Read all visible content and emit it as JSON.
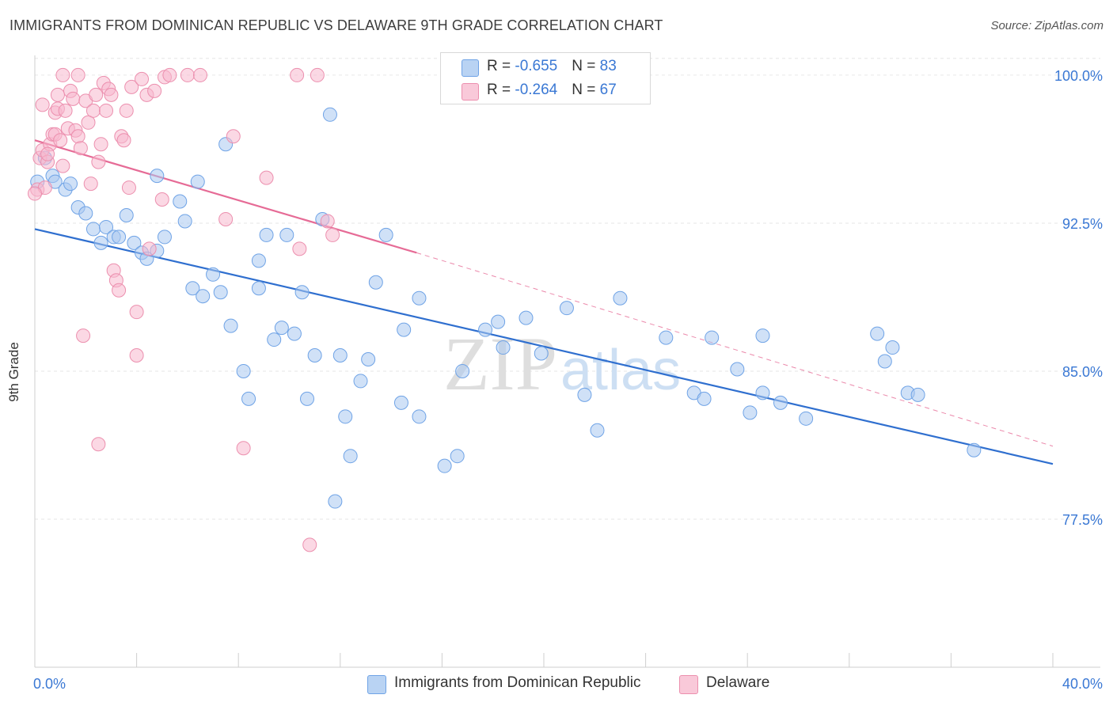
{
  "title": "IMMIGRANTS FROM DOMINICAN REPUBLIC VS DELAWARE 9TH GRADE CORRELATION CHART",
  "source": "Source: ZipAtlas.com",
  "watermark": {
    "zip": "ZIP",
    "atlas": "atlas"
  },
  "legend_top": [
    {
      "r_label": "R = ",
      "r_value": "-0.655",
      "n_label": "N = ",
      "n_value": "83",
      "color": "#a9c8f0"
    },
    {
      "r_label": "R = ",
      "r_value": "-0.264",
      "n_label": "N = ",
      "n_value": "67",
      "color": "#f7b8cd"
    }
  ],
  "legend_bottom": [
    {
      "label": "Immigrants from Dominican Republic",
      "color": "#a9c8f0"
    },
    {
      "label": "Delaware",
      "color": "#f7b8cd"
    }
  ],
  "chart_data": {
    "type": "scatter",
    "title": "IMMIGRANTS FROM DOMINICAN REPUBLIC VS DELAWARE 9TH GRADE CORRELATION CHART",
    "xlabel": "",
    "ylabel": "9th Grade",
    "xlim": [
      0,
      40
    ],
    "ylim": [
      70.0,
      101.0
    ],
    "x_tick_labels": [
      {
        "value": 0,
        "label": "0.0%"
      },
      {
        "value": 40,
        "label": "40.0%"
      }
    ],
    "y_tick_labels": [
      {
        "value": 100.0,
        "label": "100.0%"
      },
      {
        "value": 92.5,
        "label": "92.5%"
      },
      {
        "value": 85.0,
        "label": "85.0%"
      },
      {
        "value": 77.5,
        "label": "77.5%"
      }
    ],
    "grid": true,
    "legend_position": "top-center",
    "series": [
      {
        "name": "Immigrants from Dominican Republic",
        "color": "#6fa3e6",
        "fill": "#a9c8f0",
        "trend": {
          "x": [
            0,
            40
          ],
          "y": [
            92.2,
            80.3
          ],
          "style": "solid",
          "color": "#2f6fcf"
        },
        "points": [
          [
            0.1,
            94.6
          ],
          [
            0.4,
            95.8
          ],
          [
            0.7,
            94.9
          ],
          [
            0.8,
            94.6
          ],
          [
            1.2,
            94.2
          ],
          [
            1.4,
            94.5
          ],
          [
            1.7,
            93.3
          ],
          [
            2.0,
            93.0
          ],
          [
            2.3,
            92.2
          ],
          [
            2.6,
            91.5
          ],
          [
            2.8,
            92.3
          ],
          [
            3.1,
            91.8
          ],
          [
            3.3,
            91.8
          ],
          [
            3.6,
            92.9
          ],
          [
            3.9,
            91.5
          ],
          [
            4.2,
            91.0
          ],
          [
            4.4,
            90.7
          ],
          [
            4.8,
            91.1
          ],
          [
            5.1,
            91.8
          ],
          [
            4.8,
            94.9
          ],
          [
            5.7,
            93.6
          ],
          [
            5.9,
            92.6
          ],
          [
            6.4,
            94.6
          ],
          [
            7.5,
            96.5
          ],
          [
            6.2,
            89.2
          ],
          [
            6.6,
            88.8
          ],
          [
            7.0,
            89.9
          ],
          [
            7.3,
            89.0
          ],
          [
            7.7,
            87.3
          ],
          [
            8.2,
            85.0
          ],
          [
            8.4,
            83.6
          ],
          [
            8.8,
            89.2
          ],
          [
            8.8,
            90.6
          ],
          [
            9.1,
            91.9
          ],
          [
            9.4,
            86.6
          ],
          [
            9.7,
            87.2
          ],
          [
            9.9,
            91.9
          ],
          [
            10.2,
            86.9
          ],
          [
            10.5,
            89.0
          ],
          [
            10.7,
            83.6
          ],
          [
            11.0,
            85.8
          ],
          [
            11.3,
            92.7
          ],
          [
            11.6,
            98.0
          ],
          [
            11.8,
            78.4
          ],
          [
            12.0,
            85.8
          ],
          [
            12.2,
            82.7
          ],
          [
            12.4,
            80.7
          ],
          [
            12.8,
            84.5
          ],
          [
            13.1,
            85.6
          ],
          [
            13.4,
            89.5
          ],
          [
            13.8,
            91.9
          ],
          [
            14.4,
            83.4
          ],
          [
            14.5,
            87.1
          ],
          [
            15.1,
            82.7
          ],
          [
            15.1,
            88.7
          ],
          [
            16.1,
            80.2
          ],
          [
            16.6,
            80.7
          ],
          [
            16.8,
            85.0
          ],
          [
            17.7,
            87.1
          ],
          [
            18.4,
            86.2
          ],
          [
            18.2,
            87.5
          ],
          [
            19.3,
            87.7
          ],
          [
            19.9,
            85.9
          ],
          [
            20.9,
            88.2
          ],
          [
            21.6,
            83.8
          ],
          [
            22.1,
            82.0
          ],
          [
            23.0,
            88.7
          ],
          [
            24.8,
            86.7
          ],
          [
            25.9,
            83.9
          ],
          [
            26.3,
            83.6
          ],
          [
            26.6,
            86.7
          ],
          [
            27.6,
            85.1
          ],
          [
            28.1,
            82.9
          ],
          [
            28.6,
            83.9
          ],
          [
            28.6,
            86.8
          ],
          [
            29.3,
            83.4
          ],
          [
            30.3,
            82.6
          ],
          [
            33.1,
            86.9
          ],
          [
            33.4,
            85.5
          ],
          [
            33.7,
            86.2
          ],
          [
            34.3,
            83.9
          ],
          [
            34.7,
            83.8
          ],
          [
            36.9,
            81.0
          ]
        ]
      },
      {
        "name": "Delaware",
        "color": "#ec8fae",
        "fill": "#f7b8cd",
        "trend": {
          "x": [
            0,
            15
          ],
          "y": [
            96.7,
            91.0
          ],
          "style": "solid",
          "color": "#e66b96",
          "extension": {
            "x": [
              15,
              40
            ],
            "y": [
              91.0,
              81.2
            ],
            "style": "dashed"
          }
        },
        "points": [
          [
            0.1,
            94.2
          ],
          [
            0.2,
            95.8
          ],
          [
            0.3,
            96.2
          ],
          [
            0.4,
            94.3
          ],
          [
            0.5,
            95.6
          ],
          [
            0.6,
            96.5
          ],
          [
            0.7,
            97.0
          ],
          [
            0.8,
            97.0
          ],
          [
            0.8,
            98.1
          ],
          [
            0.9,
            98.3
          ],
          [
            1.0,
            96.7
          ],
          [
            1.1,
            95.4
          ],
          [
            1.2,
            98.2
          ],
          [
            1.3,
            97.3
          ],
          [
            1.4,
            99.2
          ],
          [
            1.5,
            98.8
          ],
          [
            1.6,
            97.2
          ],
          [
            1.7,
            96.9
          ],
          [
            1.8,
            96.3
          ],
          [
            2.0,
            98.7
          ],
          [
            2.1,
            97.6
          ],
          [
            2.2,
            94.5
          ],
          [
            2.3,
            98.2
          ],
          [
            2.4,
            99.0
          ],
          [
            2.5,
            95.6
          ],
          [
            2.6,
            96.5
          ],
          [
            2.7,
            99.6
          ],
          [
            2.8,
            98.2
          ],
          [
            2.9,
            99.3
          ],
          [
            3.0,
            99.0
          ],
          [
            3.1,
            90.1
          ],
          [
            3.2,
            89.6
          ],
          [
            3.3,
            89.1
          ],
          [
            3.4,
            96.9
          ],
          [
            3.5,
            96.7
          ],
          [
            3.6,
            98.2
          ],
          [
            3.7,
            94.3
          ],
          [
            3.8,
            99.4
          ],
          [
            4.0,
            88.0
          ],
          [
            4.0,
            85.8
          ],
          [
            4.2,
            99.8
          ],
          [
            4.4,
            99.0
          ],
          [
            4.5,
            91.2
          ],
          [
            4.7,
            99.2
          ],
          [
            5.0,
            93.7
          ],
          [
            5.1,
            99.9
          ],
          [
            5.3,
            100.0
          ],
          [
            6.0,
            100.0
          ],
          [
            6.5,
            100.0
          ],
          [
            7.5,
            92.7
          ],
          [
            7.8,
            96.9
          ],
          [
            8.2,
            81.1
          ],
          [
            9.1,
            94.8
          ],
          [
            10.3,
            100.0
          ],
          [
            10.4,
            91.2
          ],
          [
            10.8,
            76.2
          ],
          [
            11.1,
            100.0
          ],
          [
            11.5,
            92.6
          ],
          [
            11.7,
            91.9
          ],
          [
            1.9,
            86.8
          ],
          [
            2.5,
            81.3
          ],
          [
            1.1,
            100.0
          ],
          [
            1.7,
            100.0
          ],
          [
            0.5,
            96.0
          ],
          [
            0.3,
            98.5
          ],
          [
            0.9,
            99.0
          ],
          [
            0.0,
            94.0
          ]
        ]
      }
    ]
  }
}
